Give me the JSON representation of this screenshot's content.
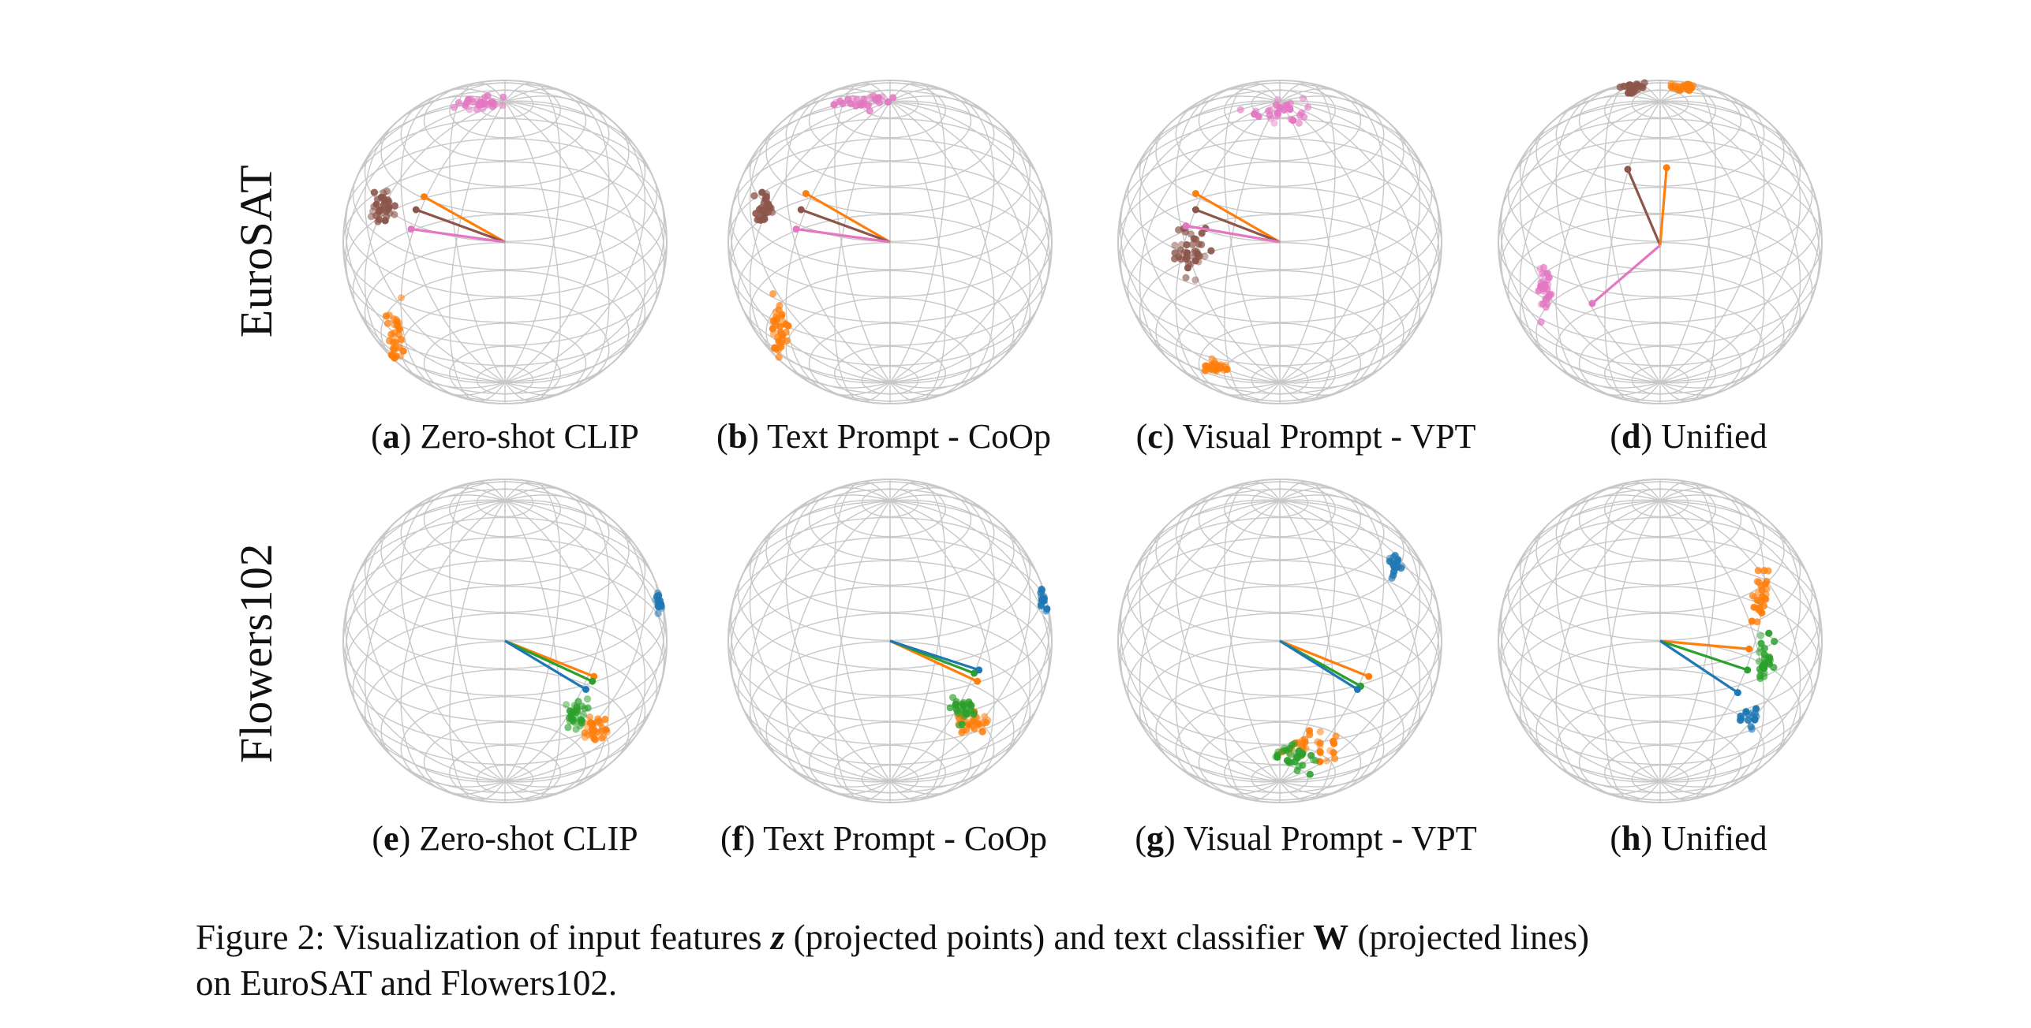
{
  "row_labels": [
    "EuroSAT",
    "Flowers102"
  ],
  "panels": [
    {
      "letter": "a",
      "name": "Zero-shot CLIP",
      "row": 0,
      "col": 0
    },
    {
      "letter": "b",
      "name": "Text Prompt - CoOp",
      "row": 0,
      "col": 1
    },
    {
      "letter": "c",
      "name": "Visual Prompt - VPT",
      "row": 0,
      "col": 2
    },
    {
      "letter": "d",
      "name": "Unified",
      "row": 0,
      "col": 3
    },
    {
      "letter": "e",
      "name": "Zero-shot CLIP",
      "row": 1,
      "col": 0
    },
    {
      "letter": "f",
      "name": "Text Prompt - CoOp",
      "row": 1,
      "col": 1
    },
    {
      "letter": "g",
      "name": "Visual Prompt - VPT",
      "row": 1,
      "col": 2
    },
    {
      "letter": "h",
      "name": "Unified",
      "row": 1,
      "col": 3
    }
  ],
  "caption": {
    "prefix": "Figure 2: Visualization of input features ",
    "z_symbol": "z",
    "middle": " (projected points) and text classifier ",
    "w_symbol": "W",
    "suffix": " (projected lines)",
    "line2": "on EuroSAT and Flowers102."
  },
  "colors": {
    "pink": "#e377c2",
    "brown": "#8c564b",
    "orange": "#ff7f0e",
    "green": "#2ca02c",
    "blue": "#1f77b4",
    "gray": "#7f7f7f",
    "purple": "#9467bd",
    "grid": "#c8c8c8"
  }
}
